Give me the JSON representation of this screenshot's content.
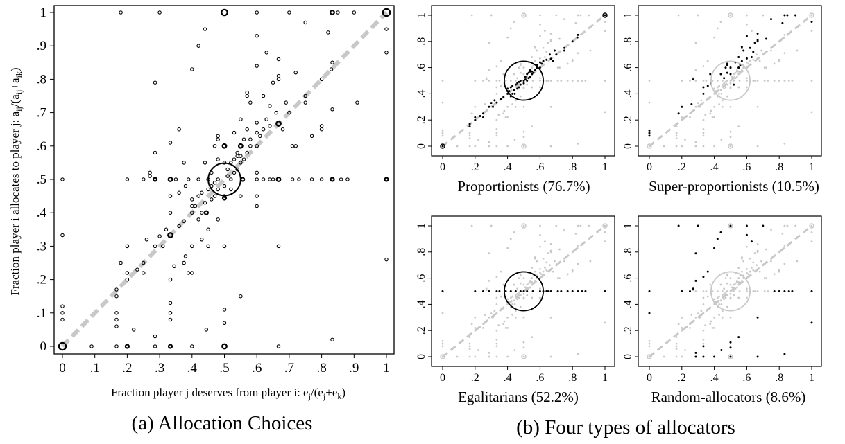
{
  "captions": {
    "a": "(a) Allocation Choices",
    "b": "(b) Four types of allocators"
  },
  "colors": {
    "ink": "#000000",
    "highlight_gray": "#c8c8c8",
    "diagonal_gray": "#c8c8c8"
  },
  "chart_data": [
    {
      "type": "scatter",
      "panel": "a",
      "xlabel_main": "Fraction player j deserves from player i: e",
      "xlabel_parts": [
        "j",
        "/(e",
        "j",
        "+e",
        "k",
        ")"
      ],
      "ylabel_main": "Fraction player i allocates to player j: a",
      "ylabel_parts": [
        "ij",
        "/(a",
        "ij",
        "+a",
        "ik",
        ")"
      ],
      "xlim": [
        0,
        1
      ],
      "ylim": [
        0,
        1
      ],
      "xticks": [
        "0",
        ".1",
        ".2",
        ".3",
        ".4",
        ".5",
        ".6",
        ".7",
        ".8",
        ".9",
        "1"
      ],
      "yticks": [
        "0",
        ".1",
        ".2",
        ".3",
        ".4",
        ".5",
        ".6",
        ".7",
        ".8",
        ".9",
        "1"
      ],
      "reference_line": "y = x (dashed)",
      "marker": "hollow circles sized by frequency",
      "big_circles": [
        {
          "x": 0.5,
          "y": 0.5,
          "r": 0.05
        },
        {
          "x": 0.0,
          "y": 0.0,
          "r": 0.011
        },
        {
          "x": 1.0,
          "y": 1.0,
          "r": 0.011
        },
        {
          "x": 0.5,
          "y": 1.0,
          "r": 0.009
        },
        {
          "x": 0.5,
          "y": 0.0,
          "r": 0.007
        },
        {
          "x": 0.333,
          "y": 0.333,
          "r": 0.007
        },
        {
          "x": 0.667,
          "y": 0.667,
          "r": 0.007
        },
        {
          "x": 0.333,
          "y": 0.5,
          "r": 0.006
        },
        {
          "x": 0.667,
          "y": 0.5,
          "r": 0.006
        },
        {
          "x": 0.833,
          "y": 1.0,
          "r": 0.006
        },
        {
          "x": 0.5,
          "y": 0.6,
          "r": 0.006
        },
        {
          "x": 0.55,
          "y": 0.6,
          "r": 0.006
        },
        {
          "x": 0.333,
          "y": 0.0,
          "r": 0.005
        },
        {
          "x": 0.5,
          "y": 0.444,
          "r": 0.005
        },
        {
          "x": 0.556,
          "y": 0.5,
          "r": 0.005
        },
        {
          "x": 0.444,
          "y": 0.4,
          "r": 0.005
        },
        {
          "x": 1.0,
          "y": 0.5,
          "r": 0.005
        },
        {
          "x": 0.833,
          "y": 0.5,
          "r": 0.005
        },
        {
          "x": 0.2,
          "y": 0.0,
          "r": 0.004
        },
        {
          "x": 0.286,
          "y": 0.5,
          "r": 0.004
        }
      ],
      "points": [
        [
          0,
          0.5
        ],
        [
          0,
          0.333
        ],
        [
          0,
          0.12
        ],
        [
          0,
          0.1
        ],
        [
          0,
          0.08
        ],
        [
          0.09,
          0
        ],
        [
          0.167,
          0
        ],
        [
          0.167,
          0.17
        ],
        [
          0.167,
          0.15
        ],
        [
          0.167,
          0.1
        ],
        [
          0.167,
          0.08
        ],
        [
          0.167,
          0.06
        ],
        [
          0.18,
          1
        ],
        [
          0.18,
          0.25
        ],
        [
          0.2,
          0.5
        ],
        [
          0.2,
          0.22
        ],
        [
          0.2,
          0.2
        ],
        [
          0.22,
          0.05
        ],
        [
          0.231,
          0.23
        ],
        [
          0.25,
          0.22
        ],
        [
          0.25,
          0.5
        ],
        [
          0.25,
          0.25
        ],
        [
          0.27,
          0.52
        ],
        [
          0.27,
          0.51
        ],
        [
          0.286,
          0.58
        ],
        [
          0.286,
          0.3
        ],
        [
          0.286,
          0.79
        ],
        [
          0.286,
          0.03
        ],
        [
          0.286,
          0
        ],
        [
          0.3,
          1
        ],
        [
          0.3,
          0.33
        ],
        [
          0.32,
          0.35
        ],
        [
          0.333,
          0.1
        ],
        [
          0.333,
          0.2
        ],
        [
          0.333,
          0.4
        ],
        [
          0.333,
          0.61
        ],
        [
          0.333,
          0.13
        ],
        [
          0.333,
          0.08
        ],
        [
          0.333,
          0.45
        ],
        [
          0.345,
          0.24
        ],
        [
          0.36,
          0.36
        ],
        [
          0.36,
          0.46
        ],
        [
          0.375,
          0.375
        ],
        [
          0.375,
          0.55
        ],
        [
          0.375,
          0.25
        ],
        [
          0.38,
          0.27
        ],
        [
          0.389,
          0.5
        ],
        [
          0.389,
          0.22
        ],
        [
          0.4,
          0.4
        ],
        [
          0.4,
          0.42
        ],
        [
          0.4,
          0.44
        ],
        [
          0.4,
          0.3
        ],
        [
          0.4,
          0.22
        ],
        [
          0.4,
          0.83
        ],
        [
          0.4,
          0
        ],
        [
          0.41,
          0.42
        ],
        [
          0.42,
          0.45
        ],
        [
          0.42,
          0.38
        ],
        [
          0.42,
          0.9
        ],
        [
          0.43,
          0.46
        ],
        [
          0.43,
          0.4
        ],
        [
          0.43,
          0.32
        ],
        [
          0.44,
          0.55
        ],
        [
          0.44,
          0.43
        ],
        [
          0.44,
          0.95
        ],
        [
          0.444,
          0.05
        ],
        [
          0.45,
          0.47
        ],
        [
          0.45,
          0.5
        ],
        [
          0.45,
          0.35
        ],
        [
          0.45,
          0.3
        ],
        [
          0.46,
          0.48
        ],
        [
          0.46,
          0.44
        ],
        [
          0.46,
          0.52
        ],
        [
          0.47,
          0.45
        ],
        [
          0.47,
          0.6
        ],
        [
          0.47,
          0.49
        ],
        [
          0.48,
          0.47
        ],
        [
          0.48,
          0.5
        ],
        [
          0.48,
          0.56
        ],
        [
          0.48,
          0.63
        ],
        [
          0.48,
          0.38
        ],
        [
          0.5,
          0.6
        ],
        [
          0.5,
          0.55
        ],
        [
          0.5,
          0.45
        ],
        [
          0.5,
          0.3
        ],
        [
          0.5,
          0.11
        ],
        [
          0.5,
          0.07
        ],
        [
          0.5,
          0.48
        ],
        [
          0.51,
          0.53
        ],
        [
          0.51,
          0.51
        ],
        [
          0.52,
          0.5
        ],
        [
          0.52,
          0.55
        ],
        [
          0.52,
          0.47
        ],
        [
          0.53,
          0.56
        ],
        [
          0.53,
          0.52
        ],
        [
          0.53,
          0.64
        ],
        [
          0.54,
          0.57
        ],
        [
          0.54,
          0.58
        ],
        [
          0.54,
          0.53
        ],
        [
          0.55,
          0.55
        ],
        [
          0.55,
          0.57
        ],
        [
          0.55,
          0.6
        ],
        [
          0.55,
          0.68
        ],
        [
          0.55,
          0.45
        ],
        [
          0.55,
          0.15
        ],
        [
          0.56,
          0.56
        ],
        [
          0.56,
          0.62
        ],
        [
          0.57,
          0.58
        ],
        [
          0.57,
          0.65
        ],
        [
          0.57,
          0.76
        ],
        [
          0.57,
          0.75
        ],
        [
          0.58,
          0.6
        ],
        [
          0.58,
          0.62
        ],
        [
          0.58,
          0.73
        ],
        [
          0.6,
          0.6
        ],
        [
          0.6,
          0.64
        ],
        [
          0.6,
          0.67
        ],
        [
          0.6,
          0.52
        ],
        [
          0.6,
          0.45
        ],
        [
          0.6,
          0.42
        ],
        [
          0.6,
          0.84
        ],
        [
          0.6,
          0.93
        ],
        [
          0.6,
          1
        ],
        [
          0.61,
          0.63
        ],
        [
          0.62,
          0.65
        ],
        [
          0.62,
          0.75
        ],
        [
          0.63,
          0.68
        ],
        [
          0.63,
          0.88
        ],
        [
          0.64,
          0.72
        ],
        [
          0.64,
          0.66
        ],
        [
          0.65,
          0.79
        ],
        [
          0.66,
          0.7
        ],
        [
          0.667,
          0.3
        ],
        [
          0.667,
          0.8
        ],
        [
          0.667,
          0.81
        ],
        [
          0.667,
          0.86
        ],
        [
          0.667,
          0
        ],
        [
          0.68,
          0.65
        ],
        [
          0.69,
          0.73
        ],
        [
          0.7,
          0.7
        ],
        [
          0.7,
          1
        ],
        [
          0.71,
          0.5
        ],
        [
          0.71,
          0.6
        ],
        [
          0.72,
          0.6
        ],
        [
          0.72,
          0.82
        ],
        [
          0.73,
          0.5
        ],
        [
          0.75,
          0.75
        ],
        [
          0.75,
          0.73
        ],
        [
          0.75,
          0.97
        ],
        [
          0.77,
          0.63
        ],
        [
          0.77,
          0.5
        ],
        [
          0.8,
          0.66
        ],
        [
          0.8,
          0.65
        ],
        [
          0.8,
          0.8
        ],
        [
          0.8,
          0.5
        ],
        [
          0.82,
          0.94
        ],
        [
          0.83,
          0.83
        ],
        [
          0.833,
          0.85
        ],
        [
          0.833,
          0.71
        ],
        [
          0.833,
          0.02
        ],
        [
          0.85,
          1
        ],
        [
          0.86,
          0.5
        ],
        [
          0.88,
          0.5
        ],
        [
          0.9,
          1
        ],
        [
          0.91,
          0.73
        ],
        [
          1,
          0.26
        ],
        [
          1,
          0.88
        ],
        [
          1,
          0.95
        ],
        [
          0.2,
          0.3
        ],
        [
          0.35,
          0.5
        ],
        [
          0.36,
          0.65
        ],
        [
          0.42,
          0.5
        ],
        [
          0.6,
          0.5
        ],
        [
          0.62,
          0.5
        ],
        [
          0.64,
          0.5
        ],
        [
          0.65,
          0.5
        ],
        [
          0.48,
          0.62
        ],
        [
          0.38,
          0.48
        ],
        [
          0.26,
          0.32
        ],
        [
          0.31,
          0.3
        ]
      ]
    },
    {
      "type": "scatter",
      "panel": "b-top-left",
      "title": "Proportionists (76.7%)",
      "xlim": [
        0,
        1
      ],
      "ylim": [
        0,
        1
      ],
      "xticks": [
        "0",
        ".2",
        ".4",
        ".6",
        ".8",
        "1"
      ],
      "yticks": [
        "0",
        ".2",
        ".4",
        ".6",
        ".8",
        "1"
      ],
      "highlight": "on-diagonal points",
      "circle": {
        "x": 0.5,
        "y": 0.5,
        "r": 0.05
      }
    },
    {
      "type": "scatter",
      "panel": "b-top-right",
      "title": "Super-proportionists (10.5%)",
      "xlim": [
        0,
        1
      ],
      "ylim": [
        0,
        1
      ],
      "xticks": [
        "0",
        ".2",
        ".4",
        ".6",
        ".8",
        "1"
      ],
      "yticks": [
        "0",
        ".2",
        ".4",
        ".6",
        ".8",
        "1"
      ],
      "highlight": "points away from 0.5",
      "circle": {
        "x": 0.5,
        "y": 0.5,
        "r": 0.05
      }
    },
    {
      "type": "scatter",
      "panel": "b-bottom-left",
      "title": "Egalitarians (52.2%)",
      "xlim": [
        0,
        1
      ],
      "ylim": [
        0,
        1
      ],
      "xticks": [
        "0",
        ".2",
        ".4",
        ".6",
        ".8",
        "1"
      ],
      "yticks": [
        "0",
        ".2",
        ".4",
        ".6",
        ".8",
        "1"
      ],
      "highlight": "y = 0.5",
      "circle": {
        "x": 0.5,
        "y": 0.5,
        "r": 0.05
      }
    },
    {
      "type": "scatter",
      "panel": "b-bottom-right",
      "title": "Random-allocators (8.6%)",
      "xlim": [
        0,
        1
      ],
      "ylim": [
        0,
        1
      ],
      "xticks": [
        "0",
        ".2",
        ".4",
        ".6",
        ".8",
        "1"
      ],
      "yticks": [
        "0",
        ".2",
        ".4",
        ".6",
        ".8",
        "1"
      ],
      "highlight": "off-diagonal points",
      "circle": {
        "x": 0.5,
        "y": 0.5,
        "r": 0.05
      }
    }
  ]
}
